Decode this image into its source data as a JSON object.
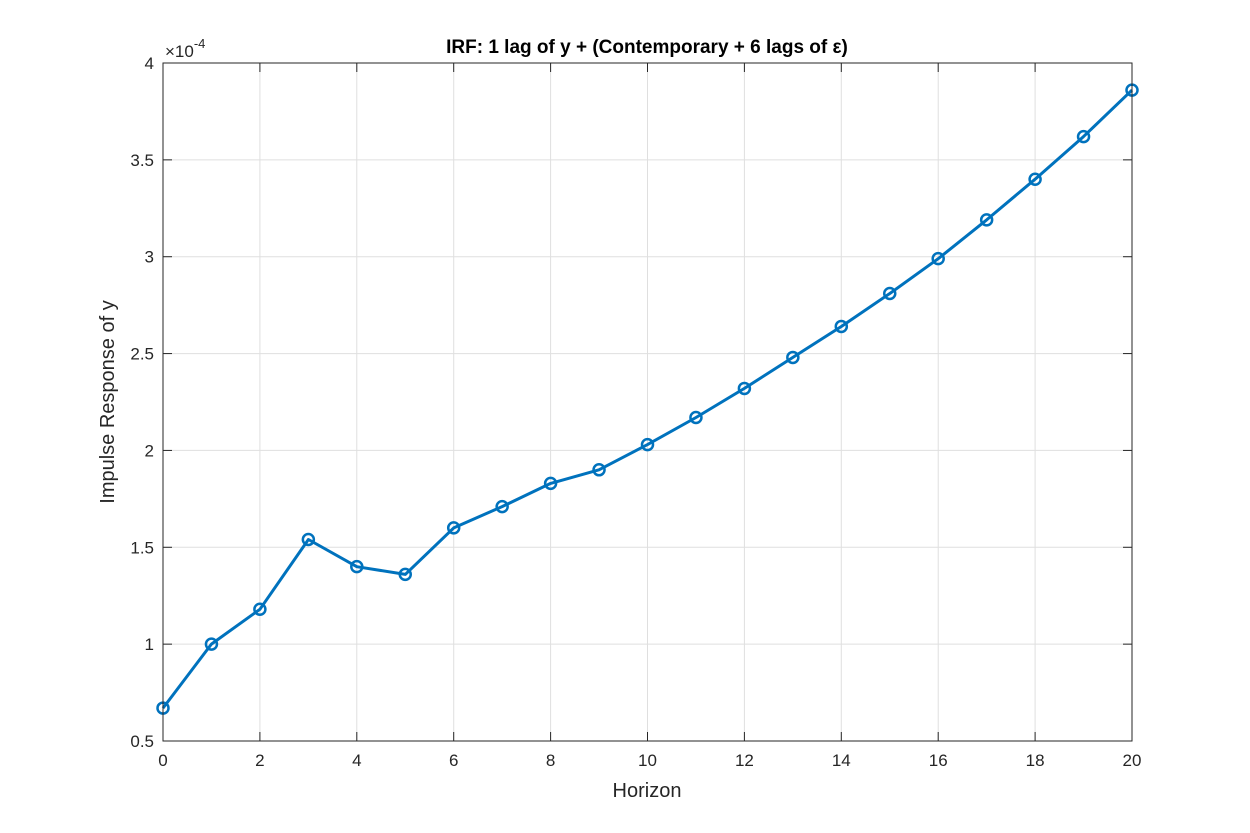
{
  "chart_data": {
    "type": "line",
    "title": "IRF: 1 lag of y + (Contemporary + 6 lags of ε)",
    "xlabel": "Horizon",
    "ylabel": "Impulse Response of y",
    "y_scale_base": "×10",
    "y_scale_exponent": "-4",
    "xlim": [
      0,
      20
    ],
    "ylim": [
      0.5,
      4
    ],
    "x_ticks": [
      "0",
      "2",
      "4",
      "6",
      "8",
      "10",
      "12",
      "14",
      "16",
      "18",
      "20"
    ],
    "y_ticks": [
      "0.5",
      "1",
      "1.5",
      "2",
      "2.5",
      "3",
      "3.5",
      "4"
    ],
    "grid": true,
    "marker": "circle",
    "series_color": "#0072BD",
    "x": [
      0,
      1,
      2,
      3,
      4,
      5,
      6,
      7,
      8,
      9,
      10,
      11,
      12,
      13,
      14,
      15,
      16,
      17,
      18,
      19,
      20
    ],
    "values": [
      0.67,
      1.0,
      1.18,
      1.54,
      1.4,
      1.36,
      1.6,
      1.71,
      1.83,
      1.9,
      2.03,
      2.17,
      2.32,
      2.48,
      2.64,
      2.81,
      2.99,
      3.19,
      3.4,
      3.62,
      3.86
    ]
  }
}
